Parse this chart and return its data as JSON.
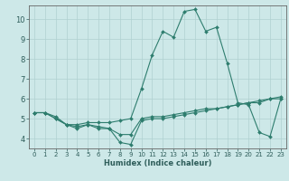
{
  "title": "",
  "xlabel": "Humidex (Indice chaleur)",
  "ylabel": "",
  "xlim": [
    -0.5,
    23.5
  ],
  "ylim": [
    3.5,
    10.7
  ],
  "yticks": [
    4,
    5,
    6,
    7,
    8,
    9,
    10
  ],
  "xticks": [
    0,
    1,
    2,
    3,
    4,
    5,
    6,
    7,
    8,
    9,
    10,
    11,
    12,
    13,
    14,
    15,
    16,
    17,
    18,
    19,
    20,
    21,
    22,
    23
  ],
  "bg_color": "#cde8e8",
  "grid_color": "#b0d0d0",
  "line_color": "#2e7d6e",
  "lines": [
    {
      "x": [
        0,
        1,
        2,
        3,
        4,
        5,
        6,
        7,
        8,
        9,
        10,
        11,
        12,
        13,
        14,
        15,
        16,
        17,
        18,
        19,
        20,
        21,
        22,
        23
      ],
      "y": [
        5.3,
        5.3,
        5.0,
        4.7,
        4.5,
        4.7,
        4.5,
        4.5,
        3.8,
        3.7,
        4.9,
        5.0,
        5.0,
        5.1,
        5.2,
        5.3,
        5.4,
        5.5,
        5.6,
        5.7,
        5.8,
        5.8,
        6.0,
        6.0
      ]
    },
    {
      "x": [
        0,
        1,
        2,
        3,
        4,
        5,
        6,
        7,
        8,
        9,
        10,
        11,
        12,
        13,
        14,
        15,
        16,
        17,
        18,
        19,
        20,
        21,
        22,
        23
      ],
      "y": [
        5.3,
        5.3,
        5.1,
        4.7,
        4.6,
        4.7,
        4.6,
        4.5,
        4.2,
        4.2,
        5.0,
        5.1,
        5.1,
        5.2,
        5.3,
        5.4,
        5.5,
        5.5,
        5.6,
        5.7,
        5.8,
        5.9,
        6.0,
        6.1
      ]
    },
    {
      "x": [
        0,
        1,
        2,
        3,
        4,
        5,
        6,
        7,
        8,
        9,
        10,
        11,
        12,
        13,
        14,
        15,
        16,
        17,
        18,
        19,
        20,
        21,
        22,
        23
      ],
      "y": [
        5.3,
        5.3,
        5.0,
        4.7,
        4.7,
        4.8,
        4.8,
        4.8,
        4.9,
        5.0,
        6.5,
        8.2,
        9.4,
        9.1,
        10.4,
        10.5,
        9.4,
        9.6,
        7.8,
        5.8,
        5.7,
        4.3,
        4.1,
        6.0
      ]
    }
  ]
}
